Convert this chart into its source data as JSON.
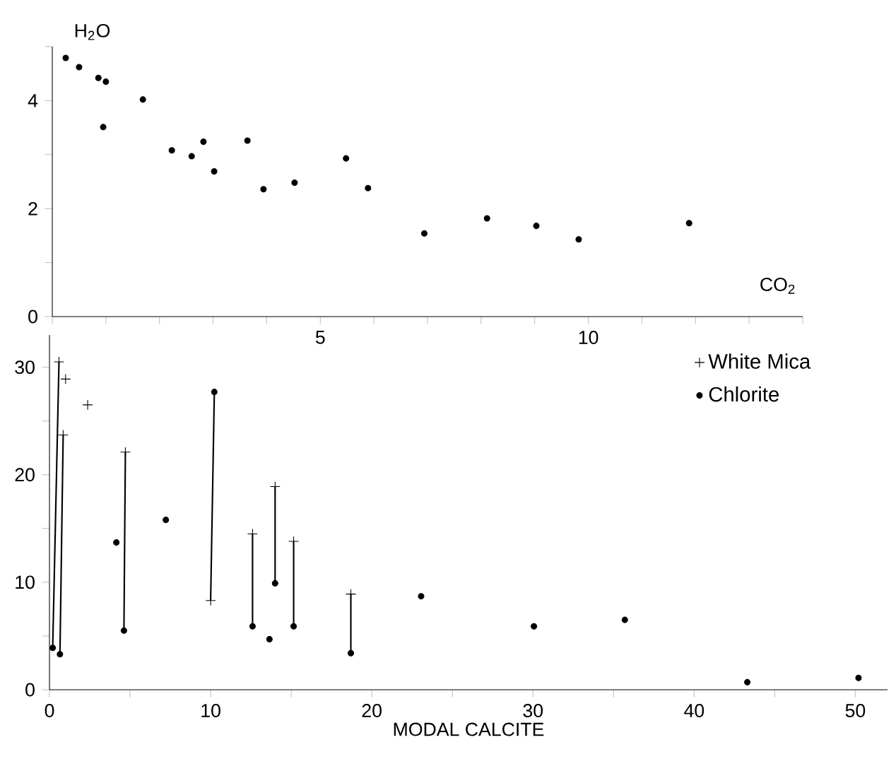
{
  "chart_data": [
    {
      "type": "scatter",
      "ylabel": "H$_{2}$O",
      "xlabel": "CO$_{2}$",
      "xlim": [
        0,
        14
      ],
      "ylim": [
        0,
        5
      ],
      "xticks": [
        {
          "value": 0,
          "label": null
        },
        {
          "value": 1,
          "label": null
        },
        {
          "value": 2,
          "label": null
        },
        {
          "value": 3,
          "label": null
        },
        {
          "value": 4,
          "label": null
        },
        5,
        {
          "value": 6,
          "label": null
        },
        {
          "value": 7,
          "label": null
        },
        {
          "value": 8,
          "label": null
        },
        {
          "value": 9,
          "label": null
        },
        10,
        {
          "value": 11,
          "label": null
        },
        {
          "value": 12,
          "label": null
        },
        {
          "value": 13,
          "label": null
        },
        {
          "value": 14,
          "label": null
        }
      ],
      "yticks": [
        0,
        {
          "value": 1,
          "label": null
        },
        2,
        {
          "value": 3,
          "label": null
        },
        4,
        {
          "value": 5,
          "label": null
        }
      ],
      "series": [
        {
          "color": "#000000",
          "marker": "circle",
          "x": [
            0.25,
            0.5,
            0.86,
            1.0,
            0.95,
            1.69,
            2.23,
            2.6,
            2.82,
            3.02,
            3.64,
            3.94,
            4.52,
            5.48,
            5.89,
            6.94,
            8.11,
            9.03,
            9.82,
            11.88
          ],
          "values": [
            4.79,
            4.62,
            4.42,
            4.35,
            3.51,
            4.02,
            3.08,
            2.97,
            3.24,
            2.69,
            3.26,
            2.36,
            2.48,
            2.93,
            2.38,
            1.54,
            1.82,
            1.68,
            1.43,
            1.73
          ]
        }
      ]
    },
    {
      "type": "scatter",
      "xlabel": "MODAL CALCITE",
      "legend": "top right",
      "xlim": [
        0,
        52
      ],
      "ylim": [
        0,
        33
      ],
      "xticks": [
        0,
        {
          "value": 5,
          "label": null
        },
        10,
        {
          "value": 15,
          "label": null
        },
        20,
        {
          "value": 25,
          "label": null
        },
        30,
        {
          "value": 35,
          "label": null
        },
        40,
        {
          "value": 45,
          "label": null
        },
        50
      ],
      "yticks": [
        0,
        {
          "value": 5,
          "label": null
        },
        10,
        {
          "value": 15,
          "label": null
        },
        20,
        {
          "value": 25,
          "label": null
        },
        30
      ],
      "series": [
        {
          "type": "line",
          "color": "#000000",
          "marker": "none",
          "x": [
            0.2,
            0.59
          ],
          "values": [
            3.9,
            30.5
          ]
        },
        {
          "type": "line",
          "color": "#000000",
          "marker": "none",
          "x": [
            0.65,
            0.85
          ],
          "values": [
            3.3,
            23.7
          ]
        },
        {
          "type": "line",
          "color": "#000000",
          "marker": "none",
          "x": [
            4.62,
            4.71
          ],
          "values": [
            5.5,
            22.1
          ]
        },
        {
          "type": "line",
          "color": "#000000",
          "marker": "none",
          "x": [
            10.23,
            10.0
          ],
          "values": [
            27.7,
            8.3
          ]
        },
        {
          "type": "line",
          "color": "#000000",
          "marker": "none",
          "x": [
            12.6,
            12.6
          ],
          "values": [
            5.9,
            14.5
          ]
        },
        {
          "type": "line",
          "color": "#000000",
          "marker": "none",
          "x": [
            14.0,
            14.0
          ],
          "values": [
            9.9,
            18.9
          ]
        },
        {
          "type": "line",
          "color": "#000000",
          "marker": "none",
          "x": [
            15.15,
            15.15
          ],
          "values": [
            5.9,
            13.8
          ]
        },
        {
          "type": "line",
          "color": "#000000",
          "marker": "none",
          "x": [
            18.7,
            18.7
          ],
          "values": [
            3.4,
            8.9
          ]
        },
        {
          "name": "White Mica",
          "color": "#000000",
          "marker": "cross",
          "x": [
            0.59,
            1.0,
            0.85,
            2.37,
            4.71,
            10.0,
            12.6,
            14.0,
            15.15,
            18.7
          ],
          "values": [
            30.5,
            28.9,
            23.7,
            26.5,
            22.1,
            8.3,
            14.5,
            18.9,
            13.8,
            8.9
          ]
        },
        {
          "name": "Chlorite",
          "color": "#000000",
          "marker": "circle",
          "x": [
            0.2,
            0.65,
            4.15,
            4.62,
            7.22,
            10.23,
            12.6,
            13.65,
            14.0,
            15.15,
            18.7,
            23.06,
            30.06,
            35.7,
            43.3,
            50.2
          ],
          "values": [
            3.9,
            3.3,
            13.7,
            5.5,
            15.8,
            27.7,
            5.9,
            4.7,
            9.9,
            5.9,
            3.4,
            8.7,
            5.9,
            6.5,
            0.7,
            1.1
          ]
        }
      ]
    }
  ]
}
